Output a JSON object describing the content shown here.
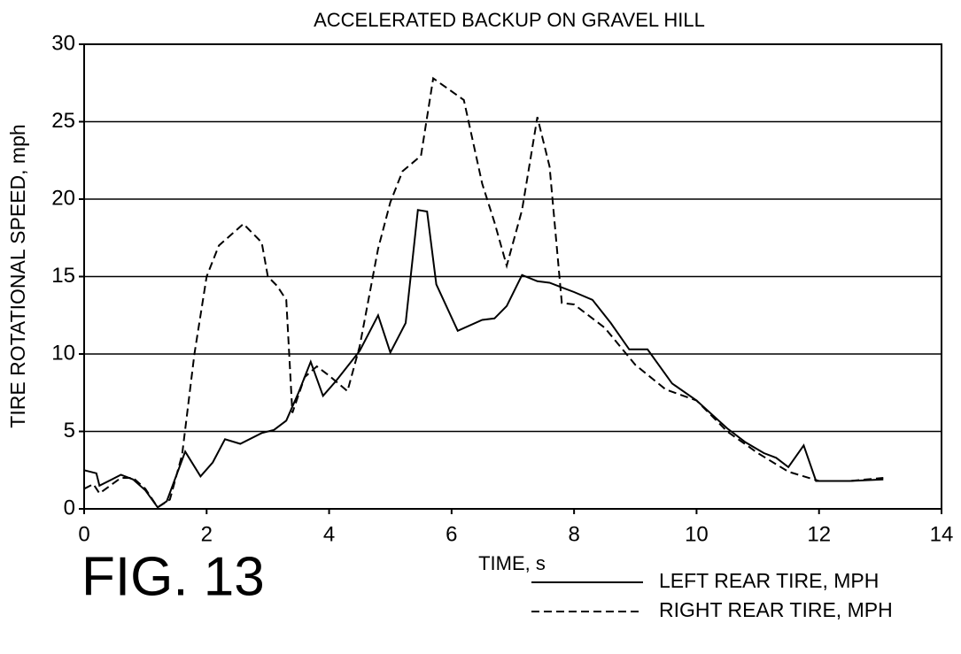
{
  "chart_data": {
    "type": "line",
    "title": "ACCELERATED BACKUP ON GRAVEL HILL",
    "xlabel": "TIME, s",
    "ylabel": "TIRE ROTATIONAL SPEED, mph",
    "annotation": "FIG. 13",
    "xlim": [
      0,
      14
    ],
    "xticks": [
      0,
      2,
      4,
      6,
      8,
      10,
      12,
      14
    ],
    "ylim": [
      0,
      30
    ],
    "yticks": [
      0,
      5,
      10,
      15,
      20,
      25,
      30
    ],
    "grid": true,
    "legend": "bottom-right",
    "series": [
      {
        "name": "LEFT REAR TIRE, MPH",
        "color": "#000000",
        "style": "solid",
        "x": [
          0,
          0.2,
          0.25,
          0.6,
          0.8,
          1.0,
          1.2,
          1.35,
          1.65,
          1.9,
          2.1,
          2.3,
          2.55,
          2.9,
          3.1,
          3.3,
          3.5,
          3.7,
          3.9,
          4.1,
          4.5,
          4.8,
          5.0,
          5.25,
          5.45,
          5.6,
          5.75,
          6.1,
          6.5,
          6.7,
          6.9,
          7.15,
          7.4,
          7.6,
          8.0,
          8.3,
          8.6,
          8.9,
          9.2,
          9.6,
          10.0,
          10.5,
          10.8,
          11.1,
          11.3,
          11.5,
          11.75,
          11.95,
          12.5,
          13.05
        ],
        "values": [
          2.5,
          2.3,
          1.5,
          2.2,
          1.9,
          1.2,
          0.1,
          0.5,
          3.7,
          2.1,
          3.0,
          4.5,
          4.2,
          4.9,
          5.1,
          5.7,
          7.5,
          9.5,
          7.3,
          8.2,
          10.2,
          12.5,
          10.1,
          12.0,
          19.3,
          19.2,
          14.5,
          11.5,
          12.2,
          12.3,
          13.1,
          15.1,
          14.7,
          14.6,
          14.0,
          13.5,
          12.0,
          10.3,
          10.3,
          8.1,
          7.0,
          5.2,
          4.3,
          3.6,
          3.3,
          2.7,
          4.1,
          1.8,
          1.8,
          1.9
        ]
      },
      {
        "name": "RIGHT REAR TIRE, MPH",
        "color": "#000000",
        "style": "dashed",
        "x": [
          0,
          0.15,
          0.25,
          0.6,
          0.8,
          1.0,
          1.2,
          1.4,
          1.6,
          1.8,
          2.0,
          2.2,
          2.6,
          2.9,
          3.0,
          3.15,
          3.3,
          3.4,
          3.6,
          3.8,
          4.0,
          4.3,
          4.5,
          4.8,
          5.0,
          5.2,
          5.5,
          5.7,
          6.2,
          6.5,
          6.7,
          6.9,
          7.15,
          7.4,
          7.6,
          7.8,
          8.0,
          8.5,
          9.0,
          9.5,
          10.0,
          10.5,
          11.0,
          11.5,
          12.0,
          12.5,
          13.05
        ],
        "values": [
          1.3,
          1.6,
          1.0,
          2.0,
          2.0,
          1.3,
          0.1,
          0.6,
          3.5,
          10,
          15,
          17.0,
          18.4,
          17.2,
          15.0,
          14.4,
          13.5,
          6.2,
          8.5,
          9.2,
          8.6,
          7.6,
          10.5,
          16.8,
          19.8,
          21.8,
          22.8,
          27.8,
          26.4,
          21.0,
          18.5,
          15.7,
          19.3,
          25.3,
          22.1,
          13.3,
          13.2,
          11.7,
          9.3,
          7.7,
          7.0,
          5.0,
          3.6,
          2.4,
          1.8,
          1.8,
          2.0
        ]
      }
    ]
  }
}
